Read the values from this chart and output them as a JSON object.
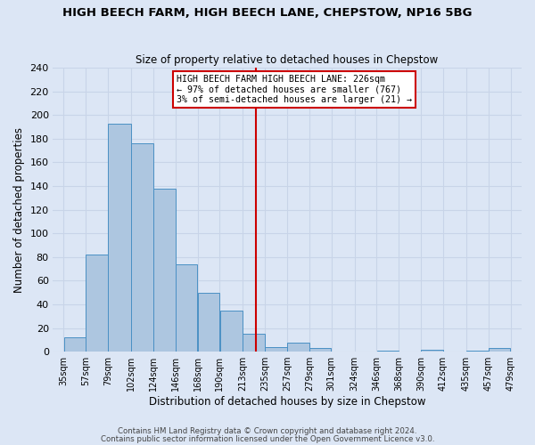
{
  "title": "HIGH BEECH FARM, HIGH BEECH LANE, CHEPSTOW, NP16 5BG",
  "subtitle": "Size of property relative to detached houses in Chepstow",
  "xlabel": "Distribution of detached houses by size in Chepstow",
  "ylabel": "Number of detached properties",
  "bar_left_edges": [
    35,
    57,
    79,
    102,
    124,
    146,
    168,
    190,
    213,
    235,
    257,
    279,
    301,
    324,
    346,
    368,
    390,
    412,
    435,
    457
  ],
  "bar_heights": [
    12,
    82,
    193,
    176,
    138,
    74,
    50,
    35,
    15,
    4,
    8,
    3,
    0,
    0,
    1,
    0,
    2,
    0,
    1,
    3
  ],
  "bar_widths": [
    22,
    22,
    23,
    22,
    22,
    22,
    22,
    23,
    22,
    22,
    22,
    22,
    23,
    22,
    22,
    22,
    22,
    23,
    22,
    22
  ],
  "xtick_labels": [
    "35sqm",
    "57sqm",
    "79sqm",
    "102sqm",
    "124sqm",
    "146sqm",
    "168sqm",
    "190sqm",
    "213sqm",
    "235sqm",
    "257sqm",
    "279sqm",
    "301sqm",
    "324sqm",
    "346sqm",
    "368sqm",
    "390sqm",
    "412sqm",
    "435sqm",
    "457sqm",
    "479sqm"
  ],
  "xtick_positions": [
    35,
    57,
    79,
    102,
    124,
    146,
    168,
    190,
    213,
    235,
    257,
    279,
    301,
    324,
    346,
    368,
    390,
    412,
    435,
    457,
    479
  ],
  "ytick_values": [
    0,
    20,
    40,
    60,
    80,
    100,
    120,
    140,
    160,
    180,
    200,
    220,
    240
  ],
  "ylim": [
    0,
    240
  ],
  "xlim": [
    24,
    490
  ],
  "bar_color": "#adc6e0",
  "bar_edge_color": "#4a90c4",
  "grid_color": "#c8d4e8",
  "bg_color": "#dce6f5",
  "vline_x": 226,
  "vline_color": "#cc0000",
  "annotation_text_line1": "HIGH BEECH FARM HIGH BEECH LANE: 226sqm",
  "annotation_text_line2": "← 97% of detached houses are smaller (767)",
  "annotation_text_line3": "3% of semi-detached houses are larger (21) →",
  "footer_line1": "Contains HM Land Registry data © Crown copyright and database right 2024.",
  "footer_line2": "Contains public sector information licensed under the Open Government Licence v3.0."
}
